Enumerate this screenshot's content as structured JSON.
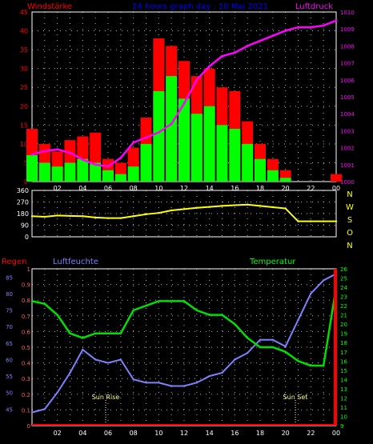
{
  "header": {
    "left_label": "Windstärke",
    "center_label": "24 hours graph day : 10 Mai 2021",
    "right_label": "Luftdruck"
  },
  "wind_dir_labels": [
    "N",
    "W",
    "S",
    "O",
    "N"
  ],
  "bottom_header": {
    "left_label": "Regen",
    "mid_label": "Luftfeuchte",
    "right_label": "Temperatur"
  },
  "annotations": {
    "sunrise": "Sun Rise",
    "sunset": "Sun Set"
  },
  "colors": {
    "wind_gust": "#ff0000",
    "wind_avg": "#00ff00",
    "pressure": "#ff00ff",
    "direction": "#ffff00",
    "humidity": "#8080ff",
    "temperature": "#00e000",
    "rain": "#ff0000",
    "axis": "#ffffff",
    "grid": "#ffffff"
  },
  "chart_data": [
    {
      "type": "area",
      "ylim_left": [
        0,
        45
      ],
      "yticks_left": [
        "0",
        "5",
        "10",
        "15",
        "20",
        "25",
        "30",
        "35",
        "40",
        "45"
      ],
      "ylim_right": [
        1000,
        1010
      ],
      "yticks_right": [
        "1000",
        "1001",
        "1002",
        "1003",
        "1004",
        "1005",
        "1006",
        "1007",
        "1008",
        "1009",
        "1010"
      ],
      "xlabels": [
        "02",
        "04",
        "06",
        "08",
        "10",
        "12",
        "14",
        "16",
        "18",
        "20",
        "22",
        "00"
      ],
      "x": [
        0,
        1,
        2,
        3,
        4,
        5,
        6,
        7,
        8,
        9,
        10,
        11,
        12,
        13,
        14,
        15,
        16,
        17,
        18,
        19,
        20,
        21,
        22,
        23,
        24
      ],
      "series": [
        {
          "key": "gust",
          "values": [
            14,
            10,
            8,
            11,
            12,
            13,
            6,
            5,
            9,
            17,
            38,
            36,
            32,
            28,
            30,
            25,
            24,
            16,
            10,
            6,
            3,
            0,
            0,
            0,
            2
          ]
        },
        {
          "key": "avg",
          "values": [
            7,
            5,
            4,
            5,
            6,
            5,
            3,
            2,
            4,
            10,
            24,
            28,
            22,
            18,
            20,
            15,
            14,
            10,
            6,
            3,
            1,
            0,
            0,
            0,
            0
          ]
        },
        {
          "key": "pressure",
          "values": [
            1001.6,
            1001.8,
            1001.9,
            1001.7,
            1001.3,
            1001.0,
            1000.9,
            1001.4,
            1002.3,
            1002.6,
            1002.9,
            1003.4,
            1004.6,
            1006.0,
            1006.8,
            1007.4,
            1007.6,
            1008.0,
            1008.3,
            1008.6,
            1008.9,
            1009.1,
            1009.1,
            1009.2,
            1009.5
          ]
        }
      ]
    },
    {
      "type": "line",
      "ylim": [
        0,
        360
      ],
      "yticks": [
        "0",
        "90",
        "180",
        "270",
        "360"
      ],
      "x": [
        0,
        1,
        2,
        3,
        4,
        5,
        6,
        7,
        8,
        9,
        10,
        11,
        12,
        13,
        14,
        15,
        16,
        17,
        18,
        19,
        20,
        21,
        22,
        23,
        24
      ],
      "series": [
        {
          "key": "direction",
          "values": [
            160,
            155,
            165,
            162,
            160,
            150,
            145,
            145,
            160,
            175,
            185,
            205,
            215,
            225,
            232,
            240,
            245,
            250,
            240,
            230,
            220,
            120,
            120,
            120,
            120
          ]
        }
      ]
    },
    {
      "type": "line",
      "ylim_rain": [
        0,
        1
      ],
      "yticks_rain": [
        "0",
        "0.1",
        "0.2",
        "0.3",
        "0.4",
        "0.5",
        "0.6",
        "0.7",
        "0.8",
        "0.9",
        "1"
      ],
      "ylim_humidity": [
        40,
        87.5
      ],
      "yticks_humidity": [
        "45",
        "50",
        "55",
        "60",
        "65",
        "70",
        "75",
        "80",
        "85"
      ],
      "ylim_temp": [
        9,
        26
      ],
      "yticks_temp": [
        "9",
        "10",
        "11",
        "12",
        "13",
        "14",
        "15",
        "16",
        "17",
        "18",
        "19",
        "20",
        "21",
        "22",
        "23",
        "24",
        "25",
        "26"
      ],
      "xlabels": [
        "02",
        "04",
        "06",
        "08",
        "10",
        "12",
        "14",
        "16",
        "18",
        "20",
        "22",
        "00"
      ],
      "x": [
        0,
        1,
        2,
        3,
        4,
        5,
        6,
        7,
        8,
        9,
        10,
        11,
        12,
        13,
        14,
        15,
        16,
        17,
        18,
        19,
        20,
        21,
        22,
        23,
        24
      ],
      "series": [
        {
          "key": "humidity",
          "values": [
            44,
            45,
            50,
            56,
            63,
            60,
            59,
            60,
            54,
            53,
            53,
            52,
            52,
            53,
            55,
            56,
            60,
            62,
            66,
            66,
            64,
            72,
            80,
            84,
            86
          ]
        },
        {
          "key": "temperature",
          "values": [
            22.5,
            22.2,
            21,
            19,
            18.5,
            19,
            19,
            19,
            21.5,
            22,
            22.5,
            22.5,
            22.5,
            21.5,
            21,
            21,
            20,
            18.5,
            17.5,
            17.5,
            17,
            16,
            15.5,
            15.5,
            24
          ]
        },
        {
          "key": "rain",
          "values": [
            0,
            0,
            0,
            0,
            0,
            0,
            0,
            0,
            0,
            0,
            0,
            0,
            0,
            0,
            0,
            0,
            0,
            0,
            0,
            0,
            0,
            0,
            0,
            0,
            1
          ]
        }
      ]
    }
  ]
}
